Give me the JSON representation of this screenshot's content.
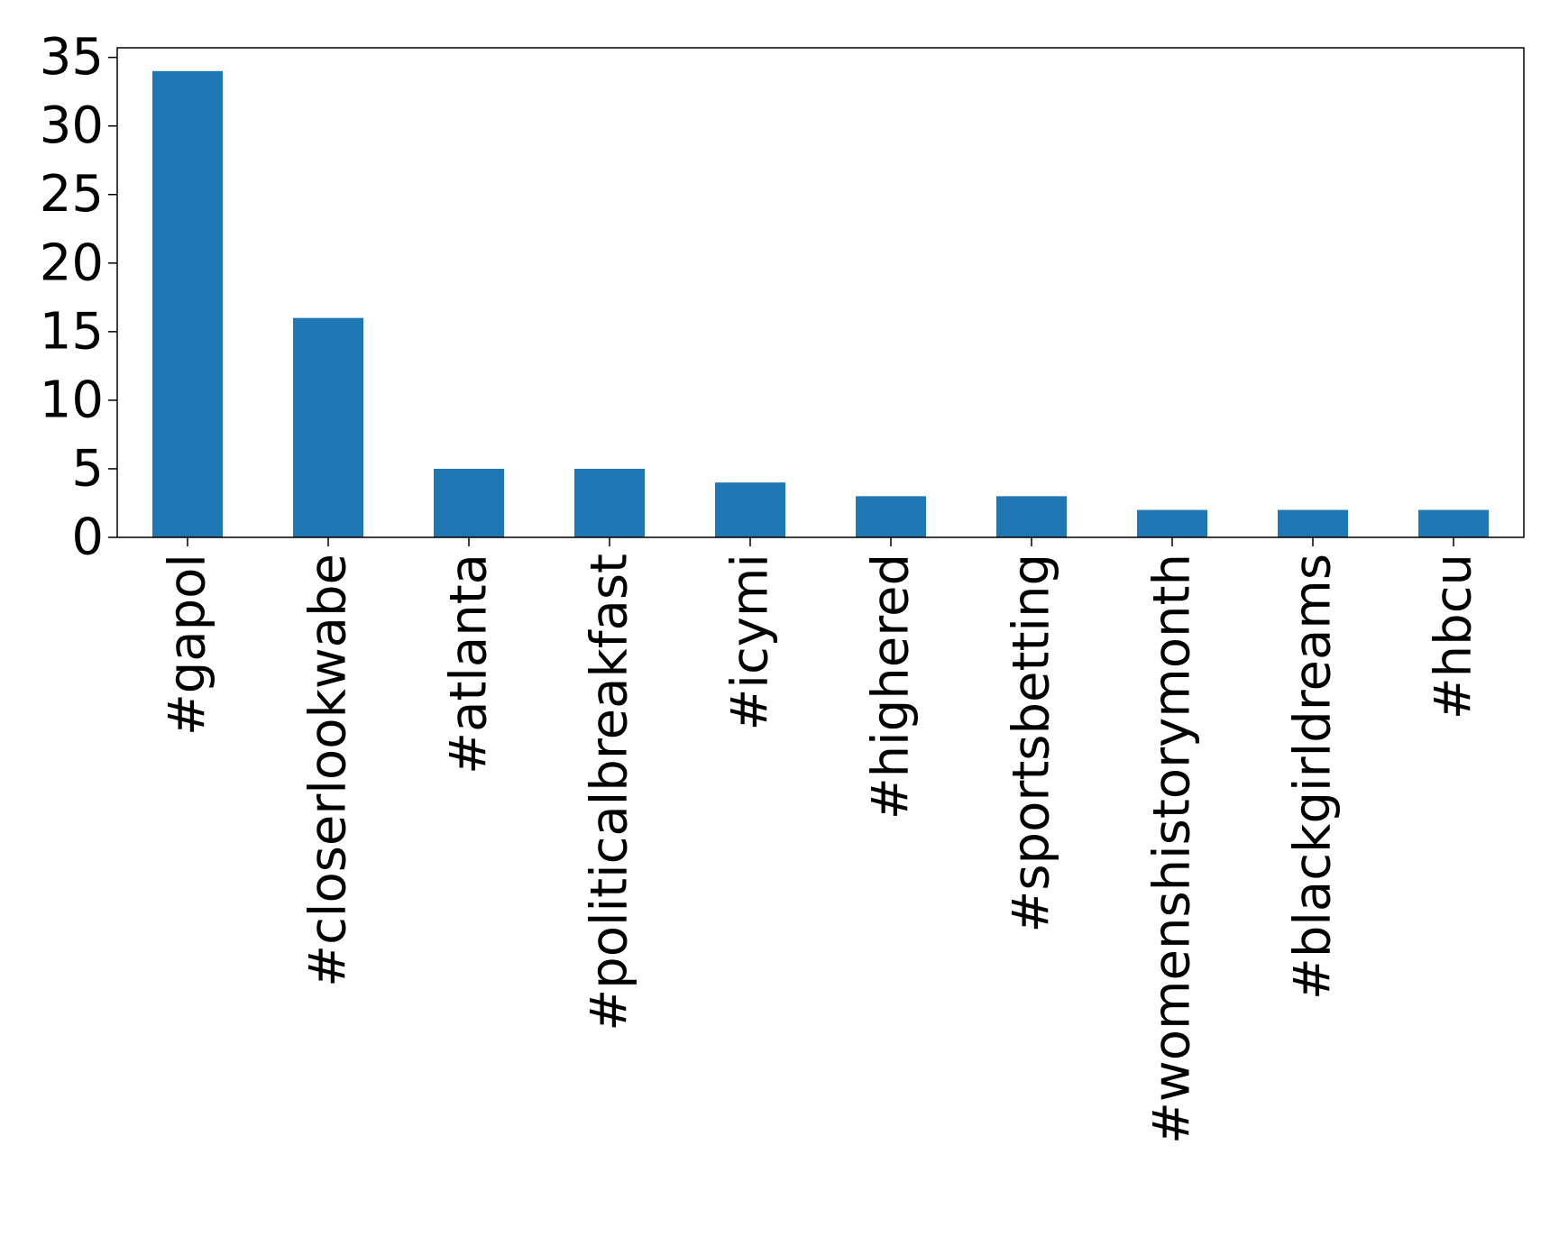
{
  "chart_data": {
    "type": "bar",
    "categories": [
      "#gapol",
      "#closerlookwabe",
      "#atlanta",
      "#politicalbreakfast",
      "#icymi",
      "#highered",
      "#sportsbetting",
      "#womenshistorymonth",
      "#blackgirldreams",
      "#hbcu"
    ],
    "values": [
      34,
      16,
      5,
      5,
      4,
      3,
      3,
      2,
      2,
      2
    ],
    "title": "",
    "xlabel": "",
    "ylabel": "",
    "ylim": [
      0,
      35.7
    ],
    "yticks": [
      "0",
      "5",
      "10",
      "15",
      "20",
      "25",
      "30",
      "35"
    ],
    "bar_color": "#1f77b4",
    "grid": false,
    "legend": "none"
  }
}
